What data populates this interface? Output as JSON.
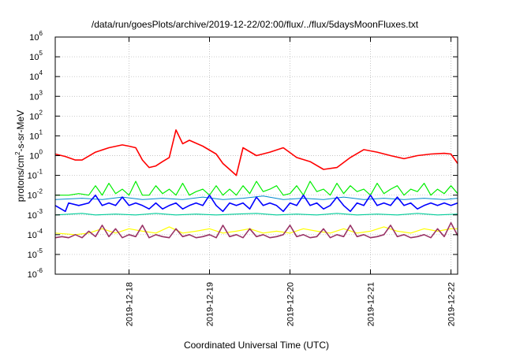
{
  "chart_data": {
    "type": "line",
    "title": "/data/run/goesPlots/archive/2019-12-22/02:00/flux/../flux/5daysMoonFluxes.txt",
    "xlabel": "Coordinated Universal Time (UTC)",
    "ylabel": "protons/cm²-s-sr-MeV",
    "ylabel_parts": {
      "base": "protons/cm",
      "sup": "2",
      "rest": "-s-sr-MeV"
    },
    "yscale": "log",
    "ylim": [
      1e-06,
      1000000.0
    ],
    "y_ticks": [
      {
        "base": "10",
        "exp": "-6"
      },
      {
        "base": "10",
        "exp": "-5"
      },
      {
        "base": "10",
        "exp": "-4"
      },
      {
        "base": "10",
        "exp": "-3"
      },
      {
        "base": "10",
        "exp": "-2"
      },
      {
        "base": "10",
        "exp": "-1"
      },
      {
        "base": "10",
        "exp": "0"
      },
      {
        "base": "10",
        "exp": "1"
      },
      {
        "base": "10",
        "exp": "2"
      },
      {
        "base": "10",
        "exp": "3"
      },
      {
        "base": "10",
        "exp": "4"
      },
      {
        "base": "10",
        "exp": "5"
      },
      {
        "base": "10",
        "exp": "6"
      }
    ],
    "xlim": [
      "2019-12-17 02:00",
      "2019-12-22 02:00"
    ],
    "x_ticks": [
      {
        "value": "2019-12-18 00:00",
        "label": "2019-12-18"
      },
      {
        "value": "2019-12-19 00:00",
        "label": "2019-12-19"
      },
      {
        "value": "2019-12-20 00:00",
        "label": "2019-12-20"
      },
      {
        "value": "2019-12-21 00:00",
        "label": "2019-12-21"
      },
      {
        "value": "2019-12-22 00:00",
        "label": "2019-12-22"
      }
    ],
    "grid": true,
    "series": [
      {
        "color": "#ff0000",
        "width": 1.6,
        "x": [
          "2019-12-17 02:00",
          "2019-12-17 05:00",
          "2019-12-17 08:00",
          "2019-12-17 10:00",
          "2019-12-17 14:00",
          "2019-12-17 18:00",
          "2019-12-17 22:00",
          "2019-12-18 00:00",
          "2019-12-18 02:00",
          "2019-12-18 04:00",
          "2019-12-18 06:00",
          "2019-12-18 08:00",
          "2019-12-18 10:00",
          "2019-12-18 12:00",
          "2019-12-18 14:00",
          "2019-12-18 16:00",
          "2019-12-18 18:00",
          "2019-12-18 22:00",
          "2019-12-19 02:00",
          "2019-12-19 04:00",
          "2019-12-19 06:00",
          "2019-12-19 08:00",
          "2019-12-19 10:00",
          "2019-12-19 14:00",
          "2019-12-19 18:00",
          "2019-12-19 22:00",
          "2019-12-20 02:00",
          "2019-12-20 06:00",
          "2019-12-20 10:00",
          "2019-12-20 14:00",
          "2019-12-20 18:00",
          "2019-12-20 22:00",
          "2019-12-21 02:00",
          "2019-12-21 06:00",
          "2019-12-21 10:00",
          "2019-12-21 14:00",
          "2019-12-21 18:00",
          "2019-12-21 22:00",
          "2019-12-22 00:00",
          "2019-12-22 02:00"
        ],
        "y": [
          1.2,
          0.9,
          0.6,
          0.6,
          1.5,
          2.5,
          3.5,
          3.0,
          2.5,
          0.6,
          0.25,
          0.3,
          0.5,
          0.8,
          20,
          4,
          6,
          3,
          1.2,
          0.4,
          0.2,
          0.1,
          2.5,
          1.0,
          1.5,
          2.5,
          0.8,
          0.5,
          0.2,
          0.25,
          0.8,
          2.0,
          1.5,
          1.0,
          0.7,
          1.0,
          1.2,
          1.3,
          1.2,
          0.4
        ]
      },
      {
        "color": "#00ee00",
        "width": 1.2,
        "x": [
          "2019-12-17 02:00",
          "2019-12-17 06:00",
          "2019-12-17 09:00",
          "2019-12-17 12:00",
          "2019-12-17 14:00",
          "2019-12-17 16:00",
          "2019-12-17 18:00",
          "2019-12-17 20:00",
          "2019-12-17 22:00",
          "2019-12-18 00:00",
          "2019-12-18 02:00",
          "2019-12-18 04:00",
          "2019-12-18 06:00",
          "2019-12-18 08:00",
          "2019-12-18 10:00",
          "2019-12-18 12:00",
          "2019-12-18 14:00",
          "2019-12-18 16:00",
          "2019-12-18 18:00",
          "2019-12-18 20:00",
          "2019-12-18 22:00",
          "2019-12-19 00:00",
          "2019-12-19 02:00",
          "2019-12-19 04:00",
          "2019-12-19 06:00",
          "2019-12-19 08:00",
          "2019-12-19 10:00",
          "2019-12-19 12:00",
          "2019-12-19 14:00",
          "2019-12-19 16:00",
          "2019-12-19 18:00",
          "2019-12-19 20:00",
          "2019-12-19 22:00",
          "2019-12-20 00:00",
          "2019-12-20 02:00",
          "2019-12-20 04:00",
          "2019-12-20 06:00",
          "2019-12-20 08:00",
          "2019-12-20 10:00",
          "2019-12-20 12:00",
          "2019-12-20 14:00",
          "2019-12-20 16:00",
          "2019-12-20 18:00",
          "2019-12-20 20:00",
          "2019-12-20 22:00",
          "2019-12-21 00:00",
          "2019-12-21 02:00",
          "2019-12-21 04:00",
          "2019-12-21 06:00",
          "2019-12-21 08:00",
          "2019-12-21 10:00",
          "2019-12-21 12:00",
          "2019-12-21 14:00",
          "2019-12-21 16:00",
          "2019-12-21 18:00",
          "2019-12-21 20:00",
          "2019-12-21 22:00",
          "2019-12-22 00:00",
          "2019-12-22 02:00"
        ],
        "y": [
          0.01,
          0.01,
          0.012,
          0.01,
          0.03,
          0.01,
          0.04,
          0.012,
          0.02,
          0.01,
          0.05,
          0.01,
          0.01,
          0.03,
          0.012,
          0.02,
          0.01,
          0.04,
          0.01,
          0.015,
          0.02,
          0.01,
          0.03,
          0.01,
          0.02,
          0.01,
          0.03,
          0.012,
          0.05,
          0.015,
          0.02,
          0.03,
          0.01,
          0.012,
          0.03,
          0.01,
          0.05,
          0.015,
          0.02,
          0.01,
          0.04,
          0.012,
          0.03,
          0.015,
          0.02,
          0.01,
          0.04,
          0.012,
          0.02,
          0.03,
          0.01,
          0.02,
          0.015,
          0.04,
          0.01,
          0.02,
          0.012,
          0.03,
          0.012
        ]
      },
      {
        "color": "#0088cc",
        "width": 1.0,
        "x": [
          "2019-12-17 02:00",
          "2019-12-17 10:00",
          "2019-12-17 16:00",
          "2019-12-17 22:00",
          "2019-12-18 04:00",
          "2019-12-18 10:00",
          "2019-12-18 16:00",
          "2019-12-18 22:00",
          "2019-12-19 04:00",
          "2019-12-19 10:00",
          "2019-12-19 16:00",
          "2019-12-19 22:00",
          "2019-12-20 04:00",
          "2019-12-20 10:00",
          "2019-12-20 16:00",
          "2019-12-20 22:00",
          "2019-12-21 04:00",
          "2019-12-21 10:00",
          "2019-12-21 16:00",
          "2019-12-21 22:00",
          "2019-12-22 02:00"
        ],
        "y": [
          0.006,
          0.007,
          0.006,
          0.008,
          0.006,
          0.007,
          0.006,
          0.008,
          0.006,
          0.007,
          0.009,
          0.006,
          0.007,
          0.006,
          0.008,
          0.006,
          0.007,
          0.006,
          0.007,
          0.006,
          0.007
        ]
      },
      {
        "color": "#0000ff",
        "width": 1.6,
        "x": [
          "2019-12-17 02:00",
          "2019-12-17 05:00",
          "2019-12-17 06:00",
          "2019-12-17 09:00",
          "2019-12-17 12:00",
          "2019-12-17 14:00",
          "2019-12-17 16:00",
          "2019-12-17 18:00",
          "2019-12-17 20:00",
          "2019-12-17 22:00",
          "2019-12-18 00:00",
          "2019-12-18 02:00",
          "2019-12-18 04:00",
          "2019-12-18 06:00",
          "2019-12-18 08:00",
          "2019-12-18 10:00",
          "2019-12-18 12:00",
          "2019-12-18 14:00",
          "2019-12-18 16:00",
          "2019-12-18 18:00",
          "2019-12-18 20:00",
          "2019-12-18 22:00",
          "2019-12-19 00:00",
          "2019-12-19 02:00",
          "2019-12-19 04:00",
          "2019-12-19 06:00",
          "2019-12-19 08:00",
          "2019-12-19 10:00",
          "2019-12-19 12:00",
          "2019-12-19 14:00",
          "2019-12-19 16:00",
          "2019-12-19 18:00",
          "2019-12-19 20:00",
          "2019-12-19 22:00",
          "2019-12-20 00:00",
          "2019-12-20 02:00",
          "2019-12-20 04:00",
          "2019-12-20 06:00",
          "2019-12-20 08:00",
          "2019-12-20 10:00",
          "2019-12-20 12:00",
          "2019-12-20 14:00",
          "2019-12-20 16:00",
          "2019-12-20 18:00",
          "2019-12-20 20:00",
          "2019-12-20 22:00",
          "2019-12-21 00:00",
          "2019-12-21 02:00",
          "2019-12-21 04:00",
          "2019-12-21 06:00",
          "2019-12-21 08:00",
          "2019-12-21 10:00",
          "2019-12-21 12:00",
          "2019-12-21 14:00",
          "2019-12-21 16:00",
          "2019-12-21 18:00",
          "2019-12-21 20:00",
          "2019-12-21 22:00",
          "2019-12-22 00:00",
          "2019-12-22 02:00"
        ],
        "y": [
          0.003,
          0.0015,
          0.004,
          0.003,
          0.004,
          0.01,
          0.003,
          0.004,
          0.003,
          0.008,
          0.003,
          0.004,
          0.003,
          0.002,
          0.004,
          0.002,
          0.003,
          0.004,
          0.002,
          0.003,
          0.004,
          0.003,
          0.01,
          0.003,
          0.0015,
          0.004,
          0.003,
          0.004,
          0.002,
          0.008,
          0.003,
          0.004,
          0.003,
          0.0015,
          0.004,
          0.003,
          0.01,
          0.003,
          0.004,
          0.002,
          0.003,
          0.008,
          0.003,
          0.0015,
          0.004,
          0.003,
          0.01,
          0.003,
          0.004,
          0.003,
          0.008,
          0.003,
          0.004,
          0.002,
          0.003,
          0.004,
          0.003,
          0.004,
          0.003,
          0.004
        ]
      },
      {
        "color": "#00cc99",
        "width": 1.2,
        "x": [
          "2019-12-17 02:00",
          "2019-12-17 10:00",
          "2019-12-17 14:00",
          "2019-12-17 20:00",
          "2019-12-18 02:00",
          "2019-12-18 08:00",
          "2019-12-18 14:00",
          "2019-12-18 20:00",
          "2019-12-19 02:00",
          "2019-12-19 08:00",
          "2019-12-19 14:00",
          "2019-12-19 20:00",
          "2019-12-20 02:00",
          "2019-12-20 08:00",
          "2019-12-20 14:00",
          "2019-12-20 20:00",
          "2019-12-21 02:00",
          "2019-12-21 08:00",
          "2019-12-21 14:00",
          "2019-12-21 20:00",
          "2019-12-22 02:00"
        ],
        "y": [
          0.001,
          0.0012,
          0.001,
          0.0011,
          0.001,
          0.0012,
          0.001,
          0.0011,
          0.001,
          0.0011,
          0.0012,
          0.001,
          0.0011,
          0.001,
          0.0012,
          0.001,
          0.0011,
          0.001,
          0.0012,
          0.001,
          0.0011
        ]
      },
      {
        "color": "#ffff00",
        "width": 1.2,
        "x": [
          "2019-12-17 02:00",
          "2019-12-17 08:00",
          "2019-12-17 12:00",
          "2019-12-17 16:00",
          "2019-12-17 20:00",
          "2019-12-18 00:00",
          "2019-12-18 04:00",
          "2019-12-18 08:00",
          "2019-12-18 12:00",
          "2019-12-18 16:00",
          "2019-12-18 20:00",
          "2019-12-19 00:00",
          "2019-12-19 04:00",
          "2019-12-19 08:00",
          "2019-12-19 12:00",
          "2019-12-19 16:00",
          "2019-12-19 20:00",
          "2019-12-20 00:00",
          "2019-12-20 04:00",
          "2019-12-20 08:00",
          "2019-12-20 12:00",
          "2019-12-20 16:00",
          "2019-12-20 20:00",
          "2019-12-21 00:00",
          "2019-12-21 04:00",
          "2019-12-21 08:00",
          "2019-12-21 12:00",
          "2019-12-21 16:00",
          "2019-12-21 20:00",
          "2019-12-22 00:00",
          "2019-12-22 02:00"
        ],
        "y": [
          0.00012,
          0.0001,
          0.00012,
          0.0002,
          0.00012,
          0.0002,
          0.00015,
          0.00012,
          0.00025,
          0.00012,
          0.00015,
          0.0002,
          0.00012,
          0.00015,
          0.0002,
          0.00012,
          0.00015,
          0.00012,
          0.0002,
          0.00015,
          0.00012,
          0.0002,
          0.00012,
          0.00015,
          0.00025,
          0.00015,
          0.00012,
          0.0002,
          0.00015,
          0.0002,
          0.0002
        ]
      },
      {
        "color": "#993366",
        "width": 1.6,
        "x": [
          "2019-12-17 02:00",
          "2019-12-17 04:00",
          "2019-12-17 06:00",
          "2019-12-17 08:00",
          "2019-12-17 10:00",
          "2019-12-17 12:00",
          "2019-12-17 14:00",
          "2019-12-17 16:00",
          "2019-12-17 18:00",
          "2019-12-17 20:00",
          "2019-12-17 22:00",
          "2019-12-18 00:00",
          "2019-12-18 02:00",
          "2019-12-18 04:00",
          "2019-12-18 06:00",
          "2019-12-18 08:00",
          "2019-12-18 10:00",
          "2019-12-18 12:00",
          "2019-12-18 14:00",
          "2019-12-18 16:00",
          "2019-12-18 18:00",
          "2019-12-18 20:00",
          "2019-12-18 22:00",
          "2019-12-19 00:00",
          "2019-12-19 02:00",
          "2019-12-19 04:00",
          "2019-12-19 06:00",
          "2019-12-19 08:00",
          "2019-12-19 10:00",
          "2019-12-19 12:00",
          "2019-12-19 14:00",
          "2019-12-19 16:00",
          "2019-12-19 18:00",
          "2019-12-19 20:00",
          "2019-12-19 22:00",
          "2019-12-20 00:00",
          "2019-12-20 02:00",
          "2019-12-20 04:00",
          "2019-12-20 06:00",
          "2019-12-20 08:00",
          "2019-12-20 10:00",
          "2019-12-20 12:00",
          "2019-12-20 14:00",
          "2019-12-20 16:00",
          "2019-12-20 18:00",
          "2019-12-20 20:00",
          "2019-12-20 22:00",
          "2019-12-21 00:00",
          "2019-12-21 02:00",
          "2019-12-21 04:00",
          "2019-12-21 06:00",
          "2019-12-21 08:00",
          "2019-12-21 10:00",
          "2019-12-21 12:00",
          "2019-12-21 14:00",
          "2019-12-21 16:00",
          "2019-12-21 18:00",
          "2019-12-21 20:00",
          "2019-12-21 22:00",
          "2019-12-22 00:00",
          "2019-12-22 02:00"
        ],
        "y": [
          7e-05,
          8e-05,
          7e-05,
          0.0001,
          7e-05,
          0.00015,
          8e-05,
          0.0003,
          8e-05,
          0.0002,
          7e-05,
          0.0001,
          8e-05,
          0.0003,
          7e-05,
          0.0001,
          8e-05,
          7e-05,
          0.0002,
          8e-05,
          0.0001,
          7e-05,
          8e-05,
          0.0001,
          7e-05,
          0.0003,
          8e-05,
          0.0001,
          7e-05,
          0.0002,
          8e-05,
          0.0001,
          7e-05,
          8e-05,
          0.0001,
          0.0003,
          8e-05,
          0.0001,
          7e-05,
          8e-05,
          0.0002,
          7e-05,
          0.0001,
          8e-05,
          0.0003,
          8e-05,
          0.0001,
          7e-05,
          8e-05,
          0.0001,
          0.0003,
          8e-05,
          0.0001,
          7e-05,
          8e-05,
          0.0001,
          7e-05,
          0.0002,
          8e-05,
          0.0004,
          9e-05
        ]
      }
    ]
  }
}
